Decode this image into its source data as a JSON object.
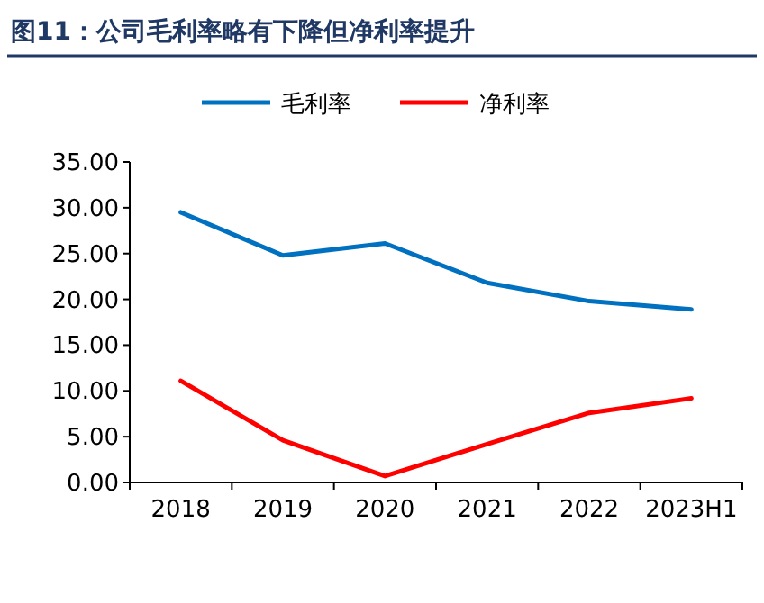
{
  "chart_data": {
    "type": "line",
    "title": "图11：公司毛利率略有下降但净利率提升",
    "categories": [
      "2018",
      "2019",
      "2020",
      "2021",
      "2022",
      "2023H1"
    ],
    "series": [
      {
        "name": "毛利率",
        "color": "#0070c0",
        "values": [
          29.5,
          24.8,
          26.1,
          21.8,
          19.8,
          18.9
        ]
      },
      {
        "name": "净利率",
        "color": "#ff0000",
        "values": [
          11.1,
          4.6,
          0.7,
          4.2,
          7.6,
          9.2
        ]
      }
    ],
    "ylim": [
      0,
      35
    ],
    "yticks": [
      {
        "value": 0,
        "label": "0.00"
      },
      {
        "value": 5,
        "label": "5.00"
      },
      {
        "value": 10,
        "label": "10.00"
      },
      {
        "value": 15,
        "label": "15.00"
      },
      {
        "value": 20,
        "label": "20.00"
      },
      {
        "value": 25,
        "label": "25.00"
      },
      {
        "value": 30,
        "label": "30.00"
      },
      {
        "value": 35,
        "label": "35.00"
      }
    ],
    "grid": false,
    "legend": "top",
    "marker": "none",
    "line_style": "solid"
  }
}
